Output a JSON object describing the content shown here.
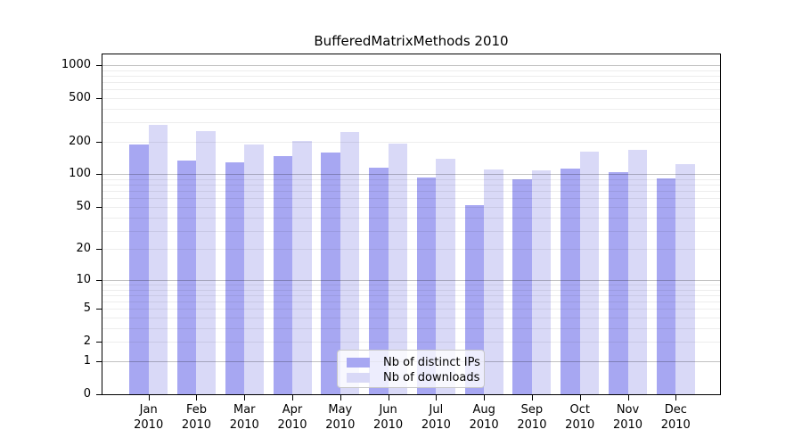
{
  "chart_data": {
    "type": "bar",
    "title": "BufferedMatrixMethods 2010",
    "categories": [
      "Jan",
      "Feb",
      "Mar",
      "Apr",
      "May",
      "Jun",
      "Jul",
      "Aug",
      "Sep",
      "Oct",
      "Nov",
      "Dec"
    ],
    "x_tick_second_line": "2010",
    "series": [
      {
        "name": "Nb of distinct IPs",
        "color": "#a7a7f2",
        "values": [
          188,
          135,
          128,
          147,
          159,
          116,
          94,
          52,
          90,
          112,
          104,
          92
        ]
      },
      {
        "name": "Nb of downloads",
        "color": "#d9d9f7",
        "values": [
          285,
          251,
          189,
          204,
          245,
          192,
          138,
          110,
          108,
          162,
          168,
          124
        ]
      }
    ],
    "xlabel": "",
    "ylabel": "",
    "yscale": "log1p",
    "y_ticks": [
      0,
      1,
      2,
      5,
      10,
      20,
      50,
      100,
      200,
      500,
      1000
    ],
    "ylim": [
      0,
      1250
    ],
    "grid": {
      "show": true,
      "major_values": [
        1,
        10,
        100,
        1000
      ],
      "minor_rule": "2..9 per decade",
      "major_color": "rgba(0,0,0,0.24)",
      "minor_color": "rgba(0,0,0,0.07)"
    },
    "legend_position": "bottom-center",
    "spine_color": "#000000",
    "background_color": "#ffffff"
  }
}
